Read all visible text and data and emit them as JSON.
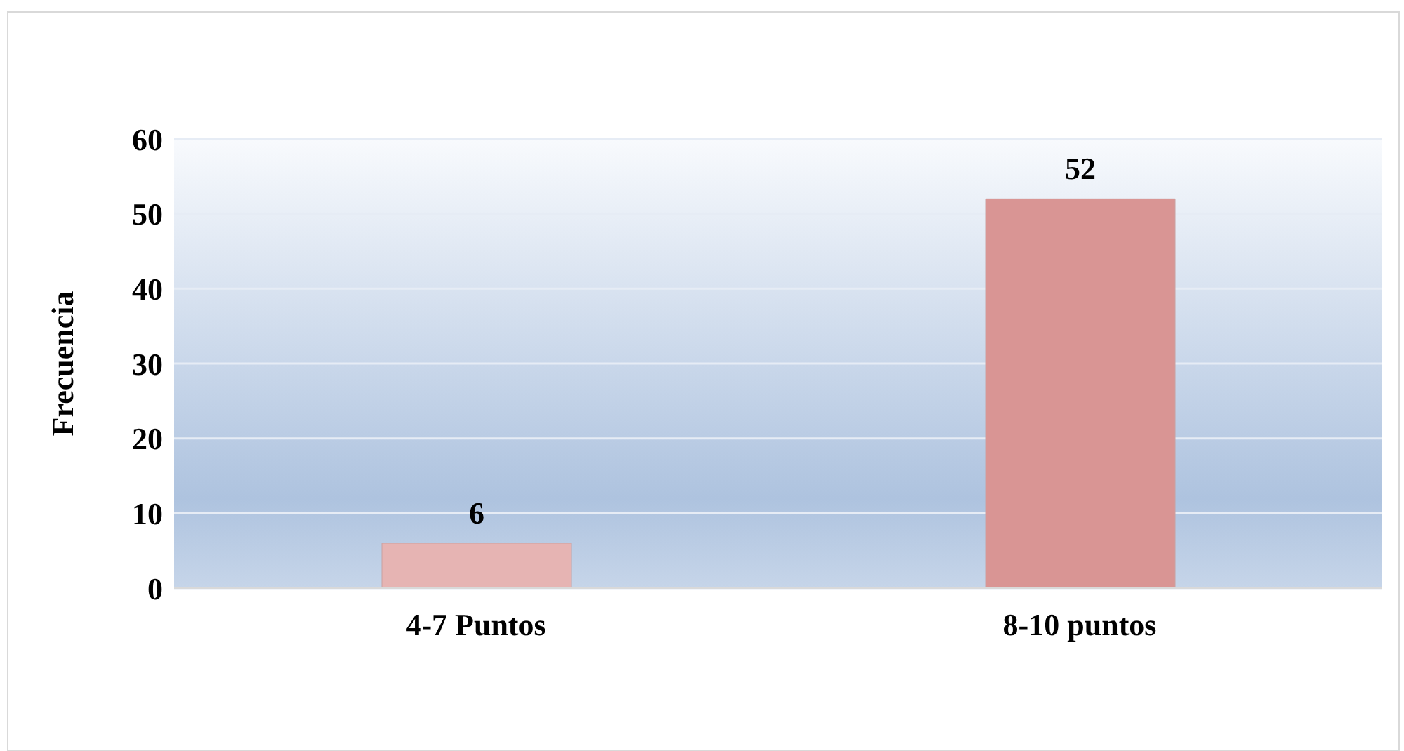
{
  "chart_data": {
    "type": "bar",
    "ylabel": "Frecuencia",
    "categories": [
      "4-7 Puntos",
      "8-10 puntos"
    ],
    "values": [
      6,
      52
    ],
    "colors": [
      "#e6b4b3",
      "#d99594"
    ],
    "ylim": [
      0,
      60
    ],
    "yticks": [
      0,
      10,
      20,
      30,
      40,
      50,
      60
    ],
    "grid": "y",
    "data_labels": true
  }
}
